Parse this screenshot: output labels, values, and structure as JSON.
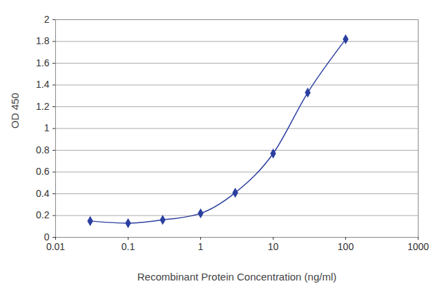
{
  "chart_data": {
    "type": "line",
    "x_label": "Recombinant Protein Concentration (ng/ml)",
    "y_label": "OD 450",
    "x": [
      0.03,
      0.1,
      0.3,
      1,
      3,
      10,
      30,
      100
    ],
    "values": [
      0.15,
      0.13,
      0.16,
      0.22,
      0.41,
      0.77,
      1.33,
      1.82
    ],
    "color": "#2b3fa0",
    "marker": "diamond",
    "log": "x",
    "grid": true,
    "xlim": [
      0.01,
      1000
    ],
    "xticks": [
      0.01,
      0.1,
      1,
      10,
      100,
      1000
    ],
    "ylim": [
      0,
      2
    ],
    "yticks": [
      0,
      0.2,
      0.4,
      0.6,
      0.8,
      1,
      1.2,
      1.4,
      1.6,
      1.8,
      2
    ]
  }
}
